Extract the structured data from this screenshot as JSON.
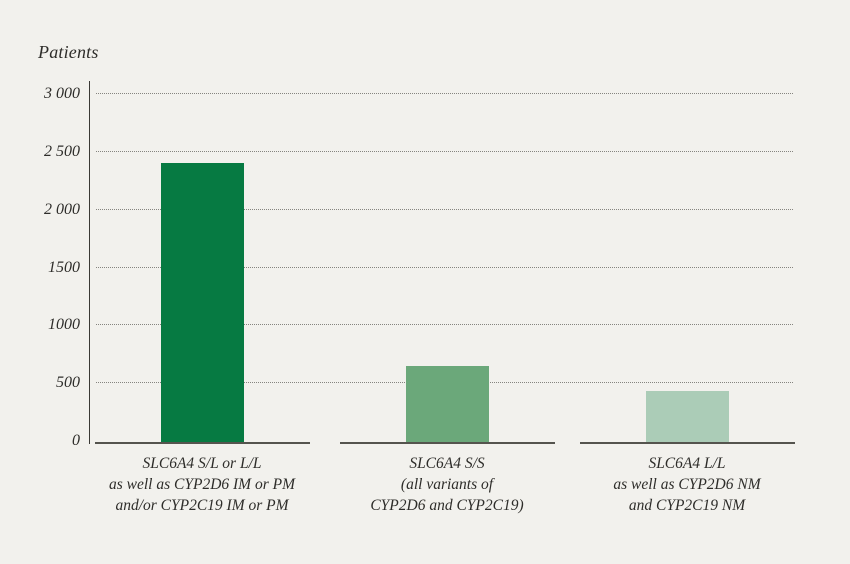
{
  "chart_data": {
    "type": "bar",
    "title": "Patients",
    "ylabel": "Patients",
    "xlabel": "",
    "ylim": [
      0,
      3000
    ],
    "grid": "horizontal-dotted",
    "legend": "none",
    "yticks": [
      {
        "value": 3000,
        "label": "3 000"
      },
      {
        "value": 2500,
        "label": "2 500"
      },
      {
        "value": 2000,
        "label": "2 000"
      },
      {
        "value": 1500,
        "label": "1500"
      },
      {
        "value": 1000,
        "label": "1000"
      },
      {
        "value": 500,
        "label": "500"
      },
      {
        "value": 0,
        "label": "0"
      }
    ],
    "categories": [
      {
        "lines": [
          "SLC6A4 S/L or L/L",
          "as well as CYP2D6 IM or PM",
          "and/or CYP2C19 IM or PM"
        ]
      },
      {
        "lines": [
          "SLC6A4 S/S",
          "(all variants of",
          "CYP2D6 and CYP2C19)"
        ]
      },
      {
        "lines": [
          "SLC6A4 L/L",
          "as well as CYP2D6 NM",
          "and CYP2C19 NM"
        ]
      }
    ],
    "values": [
      2400,
      650,
      430
    ],
    "bar_colors": [
      "#067a42",
      "#6ba87a",
      "#abccb7"
    ]
  },
  "colors": {
    "background": "#f2f1ed",
    "text": "#2e2d2a",
    "axis": "#3a3935",
    "gridline": "#85847f",
    "baseline": "#55544e",
    "bar_dark_green": "#067a42",
    "bar_medium_green": "#6ba87a",
    "bar_light_green": "#abccb7"
  }
}
